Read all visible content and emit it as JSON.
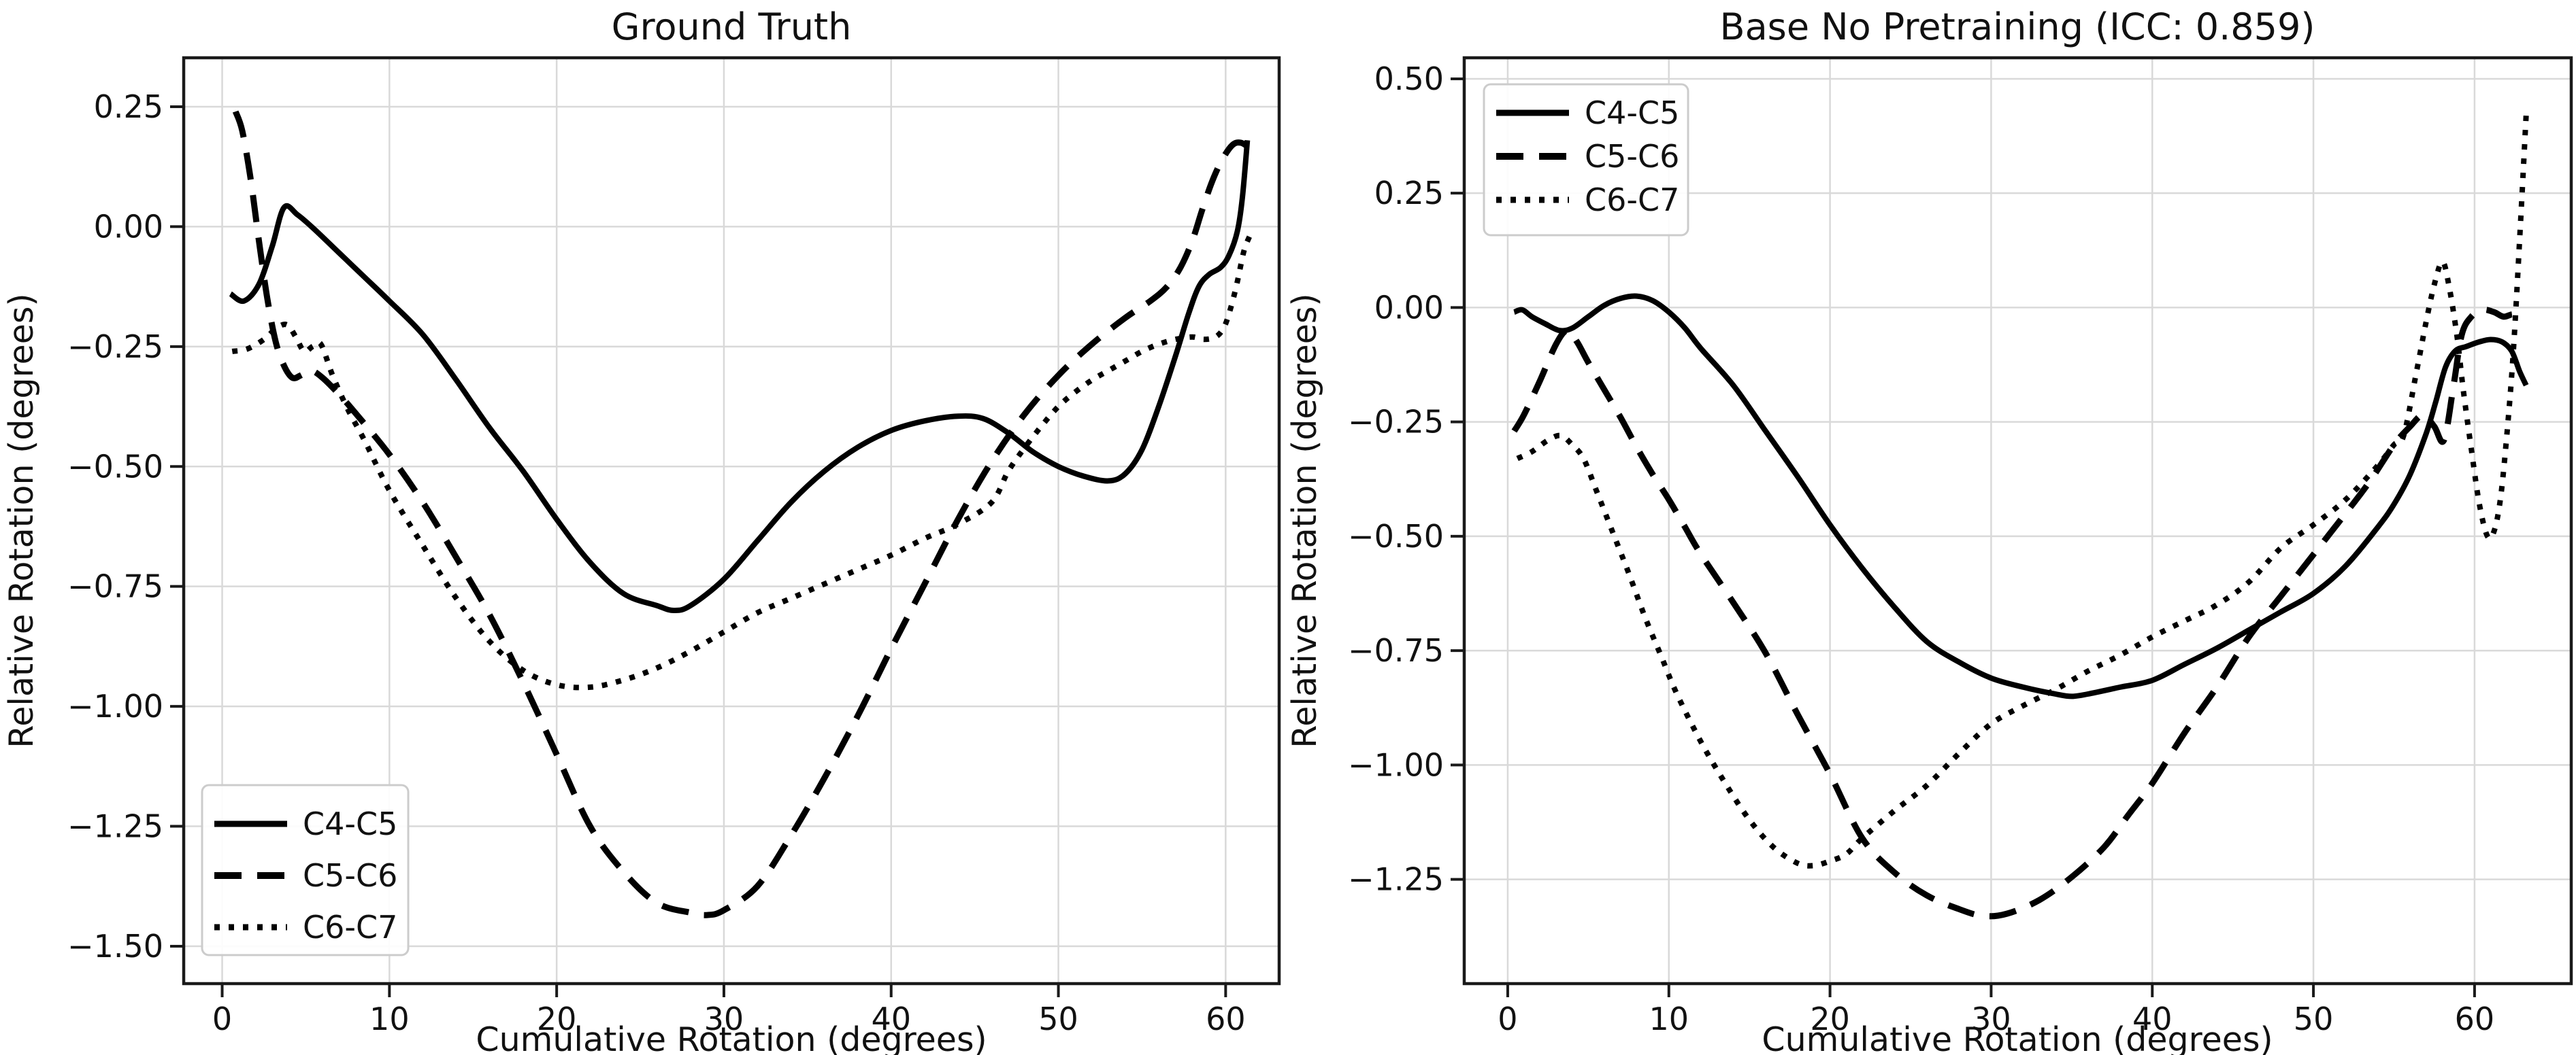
{
  "figure": {
    "background": "#ffffff",
    "line_color": "#000000",
    "grid_color": "#d9d9d9",
    "spine_color": "#1a1a1a",
    "legend_border_color": "#cccccc"
  },
  "chart_data": [
    {
      "type": "line",
      "title": "Ground Truth",
      "xlabel": "Cumulative Rotation (degrees)",
      "ylabel": "Relative Rotation (degrees)",
      "xlim": [
        -2.3,
        63.2
      ],
      "ylim": [
        -1.578,
        0.352
      ],
      "grid": true,
      "xticks": [
        0,
        10,
        20,
        30,
        40,
        50,
        60
      ],
      "xtick_labels": [
        "0",
        "10",
        "20",
        "30",
        "40",
        "50",
        "60"
      ],
      "yticks": [
        0.25,
        0.0,
        -0.25,
        -0.5,
        -0.75,
        -1.0,
        -1.25,
        -1.5
      ],
      "ytick_labels": [
        "0.25",
        "0.00",
        "−0.25",
        "−0.50",
        "−0.75",
        "−1.00",
        "−1.25",
        "−1.50"
      ],
      "legend_position": "lower left",
      "series": [
        {
          "name": "C4-C5",
          "style": "solid",
          "x": [
            0.5,
            1.3,
            2.2,
            3,
            3.7,
            4.5,
            5.5,
            7,
            8.5,
            10,
            12,
            14,
            16,
            18,
            20,
            22,
            24,
            26,
            27,
            28,
            30,
            32,
            34,
            36,
            38,
            40,
            42,
            44,
            45.5,
            47,
            48.5,
            50,
            51.5,
            53,
            54,
            55,
            56,
            57,
            57.8,
            58.4,
            59,
            59.7,
            60.2,
            60.7,
            61,
            61.3
          ],
          "y": [
            -0.14,
            -0.155,
            -0.12,
            -0.04,
            0.04,
            0.025,
            -0.005,
            -0.055,
            -0.105,
            -0.155,
            -0.225,
            -0.32,
            -0.42,
            -0.51,
            -0.61,
            -0.7,
            -0.765,
            -0.79,
            -0.8,
            -0.79,
            -0.735,
            -0.655,
            -0.575,
            -0.51,
            -0.46,
            -0.425,
            -0.405,
            -0.395,
            -0.4,
            -0.43,
            -0.47,
            -0.5,
            -0.52,
            -0.53,
            -0.515,
            -0.465,
            -0.375,
            -0.27,
            -0.18,
            -0.125,
            -0.1,
            -0.085,
            -0.06,
            -0.01,
            0.06,
            0.18
          ]
        },
        {
          "name": "C5-C6",
          "style": "dashed",
          "x": [
            0.8,
            1.2,
            1.7,
            2.2,
            2.7,
            3.2,
            3.7,
            4.2,
            4.7,
            5.3,
            6,
            7,
            8,
            10,
            12,
            14,
            16,
            18,
            20,
            22,
            24,
            26,
            28,
            29,
            30,
            32,
            34,
            36,
            38,
            40,
            42,
            44,
            46,
            48,
            50,
            52,
            54,
            55.5,
            56.5,
            57.3,
            58,
            58.6,
            59.2,
            59.8,
            60.4,
            60.9,
            61.4
          ],
          "y": [
            0.24,
            0.2,
            0.1,
            -0.03,
            -0.15,
            -0.24,
            -0.29,
            -0.315,
            -0.31,
            -0.3,
            -0.315,
            -0.35,
            -0.39,
            -0.475,
            -0.575,
            -0.69,
            -0.81,
            -0.95,
            -1.1,
            -1.25,
            -1.345,
            -1.41,
            -1.43,
            -1.435,
            -1.425,
            -1.375,
            -1.27,
            -1.15,
            -1.02,
            -0.88,
            -0.745,
            -0.61,
            -0.49,
            -0.39,
            -0.31,
            -0.245,
            -0.19,
            -0.155,
            -0.125,
            -0.085,
            -0.03,
            0.035,
            0.095,
            0.14,
            0.17,
            0.175,
            0.165
          ]
        },
        {
          "name": "C6-C7",
          "style": "dotted",
          "x": [
            0.6,
            1.5,
            2.5,
            3.3,
            3.9,
            4.4,
            4.9,
            5.4,
            5.9,
            6.6,
            7.5,
            8.5,
            10,
            12,
            14,
            16,
            18,
            20,
            22,
            24,
            26,
            28,
            30,
            32,
            34,
            36,
            38,
            40,
            42,
            44,
            46,
            47,
            48,
            49,
            50,
            51,
            52,
            53,
            54,
            55,
            56,
            57,
            58,
            58.7,
            59.4,
            59.9,
            60.3,
            60.7,
            61.1,
            61.5
          ],
          "y": [
            -0.26,
            -0.255,
            -0.235,
            -0.21,
            -0.205,
            -0.23,
            -0.26,
            -0.25,
            -0.245,
            -0.31,
            -0.38,
            -0.445,
            -0.55,
            -0.665,
            -0.775,
            -0.865,
            -0.925,
            -0.955,
            -0.96,
            -0.945,
            -0.92,
            -0.885,
            -0.845,
            -0.805,
            -0.775,
            -0.745,
            -0.715,
            -0.685,
            -0.65,
            -0.62,
            -0.575,
            -0.51,
            -0.46,
            -0.415,
            -0.375,
            -0.345,
            -0.32,
            -0.3,
            -0.28,
            -0.26,
            -0.245,
            -0.235,
            -0.23,
            -0.235,
            -0.23,
            -0.21,
            -0.17,
            -0.115,
            -0.05,
            -0.015
          ]
        }
      ]
    },
    {
      "type": "line",
      "title": "Base No Pretraining (ICC: 0.859)",
      "icc": 0.859,
      "xlabel": "Cumulative Rotation (degrees)",
      "ylabel": "Relative Rotation (degrees)",
      "xlim": [
        -2.7,
        66.0
      ],
      "ylim": [
        -1.478,
        0.546
      ],
      "grid": true,
      "xticks": [
        0,
        10,
        20,
        30,
        40,
        50,
        60
      ],
      "xtick_labels": [
        "0",
        "10",
        "20",
        "30",
        "40",
        "50",
        "60"
      ],
      "yticks": [
        0.5,
        0.25,
        0.0,
        -0.25,
        -0.5,
        -0.75,
        -1.0,
        -1.25
      ],
      "ytick_labels": [
        "0.50",
        "0.25",
        "0.00",
        "−0.25",
        "−0.50",
        "−0.75",
        "−1.00",
        "−1.25"
      ],
      "legend_position": "upper left",
      "series": [
        {
          "name": "C4-C5",
          "style": "solid",
          "x": [
            0.4,
            0.9,
            1.5,
            2.3,
            3.2,
            4,
            5,
            6,
            7,
            8,
            9,
            10,
            11,
            12,
            14,
            16,
            18,
            20,
            22,
            24,
            26,
            28,
            30,
            32,
            34,
            35,
            36,
            38,
            40,
            42,
            44,
            46,
            48,
            50,
            52,
            54,
            55,
            56,
            57,
            57.6,
            58.2,
            58.8,
            59.5,
            60.3,
            61,
            61.7,
            62.3,
            62.8,
            63.2
          ],
          "y": [
            -0.01,
            -0.005,
            -0.02,
            -0.035,
            -0.05,
            -0.045,
            -0.02,
            0.005,
            0.02,
            0.025,
            0.015,
            -0.01,
            -0.045,
            -0.09,
            -0.17,
            -0.27,
            -0.37,
            -0.475,
            -0.57,
            -0.655,
            -0.73,
            -0.775,
            -0.81,
            -0.83,
            -0.845,
            -0.85,
            -0.845,
            -0.83,
            -0.815,
            -0.78,
            -0.745,
            -0.705,
            -0.665,
            -0.625,
            -0.565,
            -0.48,
            -0.43,
            -0.365,
            -0.275,
            -0.205,
            -0.13,
            -0.095,
            -0.085,
            -0.075,
            -0.07,
            -0.075,
            -0.095,
            -0.14,
            -0.17
          ]
        },
        {
          "name": "C5-C6",
          "style": "dashed",
          "x": [
            0.4,
            1,
            2,
            3,
            3.7,
            4.3,
            5,
            6,
            7,
            8,
            9,
            10,
            11,
            12,
            14,
            16,
            18,
            20,
            22,
            24,
            26,
            28,
            29.5,
            31,
            33,
            35,
            37,
            38.5,
            40,
            42,
            44,
            46,
            48,
            50,
            52,
            53.5,
            55,
            56,
            56.8,
            57.5,
            58.1,
            58.7,
            59.2,
            59.8,
            60.5,
            61.2,
            61.8,
            62.4,
            63
          ],
          "y": [
            -0.27,
            -0.235,
            -0.16,
            -0.08,
            -0.05,
            -0.075,
            -0.12,
            -0.18,
            -0.24,
            -0.305,
            -0.365,
            -0.42,
            -0.48,
            -0.54,
            -0.645,
            -0.755,
            -0.89,
            -1.02,
            -1.16,
            -1.235,
            -1.285,
            -1.315,
            -1.33,
            -1.325,
            -1.295,
            -1.245,
            -1.18,
            -1.11,
            -1.04,
            -0.93,
            -0.83,
            -0.72,
            -0.63,
            -0.54,
            -0.45,
            -0.38,
            -0.3,
            -0.26,
            -0.235,
            -0.26,
            -0.29,
            -0.17,
            -0.06,
            -0.02,
            -0.005,
            -0.01,
            -0.02,
            -0.015,
            -0.025
          ]
        },
        {
          "name": "C6-C7",
          "style": "dotted",
          "x": [
            0.6,
            1.5,
            2.5,
            3.3,
            4,
            4.7,
            5.5,
            6.5,
            7.5,
            8.5,
            9.5,
            10.5,
            12,
            13.5,
            15,
            16.5,
            18,
            19,
            20,
            21,
            22,
            24,
            26,
            28,
            30,
            32,
            34,
            36,
            38,
            40,
            42,
            44,
            46,
            48,
            50,
            52,
            54,
            55,
            55.6,
            56.4,
            57,
            57.5,
            58,
            58.4,
            58.9,
            59.3,
            59.8,
            60.3,
            60.8,
            61.2,
            61.6,
            62,
            62.4,
            62.8,
            63.2
          ],
          "y": [
            -0.33,
            -0.315,
            -0.29,
            -0.28,
            -0.3,
            -0.33,
            -0.4,
            -0.49,
            -0.58,
            -0.675,
            -0.76,
            -0.845,
            -0.95,
            -1.04,
            -1.12,
            -1.18,
            -1.215,
            -1.22,
            -1.21,
            -1.195,
            -1.16,
            -1.1,
            -1.045,
            -0.975,
            -0.91,
            -0.87,
            -0.835,
            -0.795,
            -0.76,
            -0.72,
            -0.685,
            -0.65,
            -0.6,
            -0.525,
            -0.475,
            -0.42,
            -0.345,
            -0.3,
            -0.28,
            -0.14,
            -0.03,
            0.05,
            0.1,
            0.05,
            -0.06,
            -0.18,
            -0.31,
            -0.43,
            -0.5,
            -0.49,
            -0.42,
            -0.28,
            -0.1,
            0.15,
            0.42
          ]
        }
      ]
    }
  ]
}
